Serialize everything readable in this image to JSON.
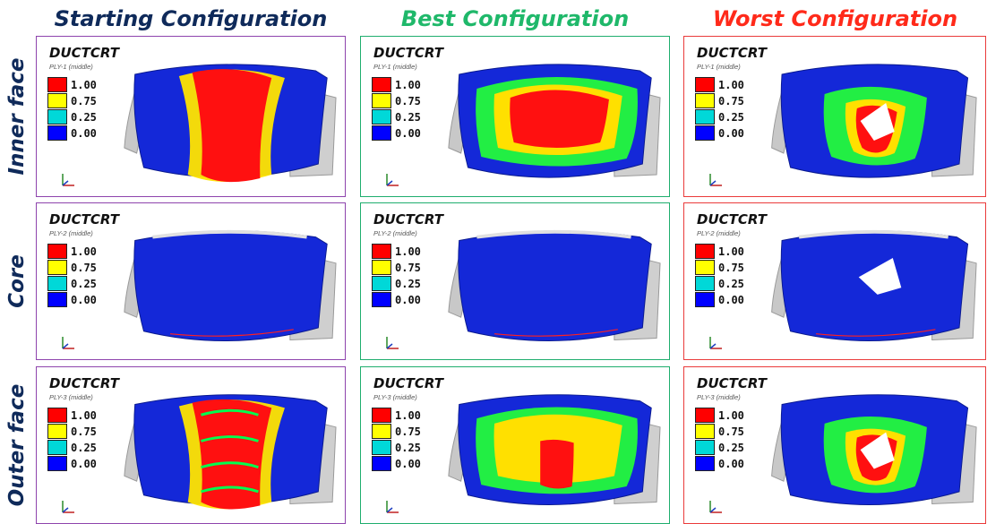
{
  "columns": [
    {
      "title": "Starting Configuration",
      "color": "#0f2a5a",
      "border": "#8e44ad"
    },
    {
      "title": "Best Configuration",
      "color": "#1fb86a",
      "border": "#1fae6e"
    },
    {
      "title": "Worst Configuration",
      "color": "#ff2a1a",
      "border": "#ea3b3b"
    }
  ],
  "rows": [
    {
      "title": "Inner face",
      "ply": "PLY-1 (middle)"
    },
    {
      "title": "Core",
      "ply": "PLY-2 (middle)"
    },
    {
      "title": "Outer face",
      "ply": "PLY-3 (middle)"
    }
  ],
  "panel_symbol": "DUCTCRT",
  "legend": [
    {
      "label": "1.00",
      "color": "#ff0000"
    },
    {
      "label": "0.75",
      "color": "#ffff00"
    },
    {
      "label": "0.25",
      "color": "#00d8d8"
    },
    {
      "label": "0.00",
      "color": "#0000ff"
    }
  ]
}
